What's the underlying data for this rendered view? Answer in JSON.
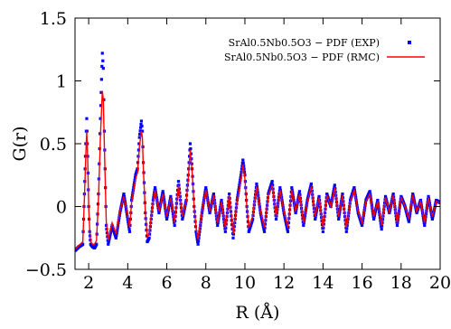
{
  "chart_data": {
    "type": "line",
    "title": "",
    "xlabel": "R (Å)",
    "ylabel": "G(r)",
    "xlim": [
      1.3,
      20
    ],
    "ylim": [
      -0.5,
      1.5
    ],
    "xticks": [
      2,
      4,
      6,
      8,
      10,
      12,
      14,
      16,
      18,
      20
    ],
    "yticks": [
      -0.5,
      0,
      0.5,
      1,
      1.5
    ],
    "xtick_labels": [
      "2",
      "4",
      "6",
      "8",
      "10",
      "12",
      "14",
      "16",
      "18",
      "20"
    ],
    "ytick_labels": [
      "−0.5",
      "0",
      "0.5",
      "1",
      "1.5"
    ],
    "grid": false,
    "legend_position": "top-right",
    "series": [
      {
        "name": "SrAl0.5Nb0.5O3 − PDF (EXP)",
        "style": "points",
        "color": "#0000ff",
        "x": [
          1.3,
          1.5,
          1.7,
          1.8,
          1.85,
          1.9,
          1.95,
          2.0,
          2.05,
          2.1,
          2.2,
          2.3,
          2.4,
          2.5,
          2.6,
          2.7,
          2.75,
          2.8,
          2.9,
          3.0,
          3.2,
          3.4,
          3.6,
          3.8,
          4.0,
          4.1,
          4.2,
          4.3,
          4.4,
          4.5,
          4.6,
          4.7,
          4.75,
          4.8,
          4.9,
          5.0,
          5.1,
          5.2,
          5.3,
          5.4,
          5.6,
          5.8,
          6.0,
          6.2,
          6.4,
          6.6,
          6.8,
          7.0,
          7.1,
          7.2,
          7.3,
          7.4,
          7.5,
          7.6,
          7.8,
          8.0,
          8.2,
          8.4,
          8.6,
          8.8,
          9.0,
          9.2,
          9.4,
          9.6,
          9.8,
          9.9,
          10.0,
          10.1,
          10.2,
          10.4,
          10.6,
          10.8,
          11.0,
          11.2,
          11.4,
          11.6,
          11.8,
          12.0,
          12.2,
          12.4,
          12.6,
          12.8,
          13.0,
          13.2,
          13.4,
          13.6,
          13.8,
          14.0,
          14.2,
          14.4,
          14.6,
          14.8,
          15.0,
          15.2,
          15.4,
          15.6,
          15.8,
          16.0,
          16.2,
          16.4,
          16.6,
          16.8,
          17.0,
          17.2,
          17.4,
          17.6,
          17.8,
          18.0,
          18.2,
          18.4,
          18.6,
          18.8,
          19.0,
          19.2,
          19.4,
          19.6,
          19.8,
          20.0
        ],
        "y": [
          -0.35,
          -0.32,
          -0.3,
          0.2,
          0.5,
          0.7,
          0.4,
          0.0,
          -0.2,
          -0.3,
          -0.32,
          -0.33,
          -0.3,
          0.1,
          0.7,
          1.22,
          1.1,
          0.6,
          -0.15,
          -0.3,
          -0.15,
          -0.25,
          -0.05,
          0.1,
          -0.1,
          -0.2,
          0.05,
          0.15,
          0.25,
          0.3,
          0.55,
          0.68,
          0.6,
          0.35,
          -0.05,
          -0.28,
          -0.25,
          -0.1,
          0.05,
          0.15,
          -0.05,
          0.12,
          -0.1,
          0.08,
          -0.15,
          0.2,
          -0.1,
          0.05,
          0.25,
          0.5,
          0.3,
          0.0,
          -0.2,
          -0.3,
          -0.05,
          0.15,
          -0.05,
          0.1,
          -0.15,
          0.05,
          -0.2,
          0.1,
          -0.25,
          0.05,
          0.25,
          0.37,
          0.25,
          0.0,
          -0.2,
          -0.1,
          0.18,
          -0.05,
          -0.2,
          0.1,
          0.2,
          -0.1,
          0.15,
          -0.05,
          -0.2,
          0.15,
          -0.05,
          0.12,
          -0.15,
          0.05,
          0.18,
          -0.1,
          0.08,
          -0.2,
          0.1,
          0.0,
          0.17,
          -0.1,
          0.1,
          -0.2,
          0.05,
          0.15,
          -0.05,
          -0.15,
          0.05,
          0.12,
          -0.1,
          0.05,
          -0.18,
          0.08,
          -0.05,
          0.1,
          -0.15,
          0.08,
          0.0,
          -0.12,
          0.1,
          -0.05,
          0.05,
          -0.15,
          0.08,
          -0.1,
          0.05,
          0.03
        ]
      },
      {
        "name": "SrAl0.5Nb0.5O3 − PDF (RMC)",
        "style": "line",
        "color": "#ff0000",
        "x": [
          1.3,
          1.5,
          1.7,
          1.8,
          1.85,
          1.9,
          1.95,
          2.0,
          2.05,
          2.1,
          2.2,
          2.3,
          2.4,
          2.5,
          2.6,
          2.7,
          2.75,
          2.8,
          2.9,
          3.0,
          3.2,
          3.4,
          3.6,
          3.8,
          4.0,
          4.1,
          4.2,
          4.3,
          4.4,
          4.5,
          4.6,
          4.7,
          4.75,
          4.8,
          4.9,
          5.0,
          5.1,
          5.2,
          5.3,
          5.4,
          5.6,
          5.8,
          6.0,
          6.2,
          6.4,
          6.6,
          6.8,
          7.0,
          7.1,
          7.2,
          7.3,
          7.4,
          7.5,
          7.6,
          7.8,
          8.0,
          8.2,
          8.4,
          8.6,
          8.8,
          9.0,
          9.2,
          9.4,
          9.6,
          9.8,
          9.9,
          10.0,
          10.1,
          10.2,
          10.4,
          10.6,
          10.8,
          11.0,
          11.2,
          11.4,
          11.6,
          11.8,
          12.0,
          12.2,
          12.4,
          12.6,
          12.8,
          13.0,
          13.2,
          13.4,
          13.6,
          13.8,
          14.0,
          14.2,
          14.4,
          14.6,
          14.8,
          15.0,
          15.2,
          15.4,
          15.6,
          15.8,
          16.0,
          16.2,
          16.4,
          16.6,
          16.8,
          17.0,
          17.2,
          17.4,
          17.6,
          17.8,
          18.0,
          18.2,
          18.4,
          18.6,
          18.8,
          19.0,
          19.2,
          19.4,
          19.6,
          19.8,
          20.0
        ],
        "y": [
          -0.34,
          -0.31,
          -0.28,
          0.15,
          0.4,
          0.6,
          0.38,
          0.0,
          -0.18,
          -0.28,
          -0.3,
          -0.3,
          -0.27,
          0.05,
          0.55,
          0.92,
          0.85,
          0.5,
          -0.12,
          -0.27,
          -0.13,
          -0.22,
          -0.04,
          0.08,
          -0.08,
          -0.17,
          0.04,
          0.13,
          0.22,
          0.27,
          0.48,
          0.6,
          0.55,
          0.3,
          -0.04,
          -0.24,
          -0.22,
          -0.08,
          0.04,
          0.13,
          -0.04,
          0.1,
          -0.08,
          0.07,
          -0.13,
          0.17,
          -0.08,
          0.04,
          0.22,
          0.45,
          0.27,
          0.0,
          -0.17,
          -0.26,
          -0.04,
          0.13,
          -0.04,
          0.09,
          -0.13,
          0.04,
          -0.17,
          0.09,
          -0.22,
          0.04,
          0.22,
          0.33,
          0.22,
          0.0,
          -0.17,
          -0.08,
          0.16,
          -0.04,
          -0.17,
          0.09,
          0.17,
          -0.08,
          0.13,
          -0.04,
          -0.17,
          0.13,
          -0.04,
          0.1,
          -0.13,
          0.04,
          0.16,
          -0.08,
          0.07,
          -0.17,
          0.09,
          0.0,
          0.15,
          -0.08,
          0.09,
          -0.17,
          0.04,
          0.13,
          -0.04,
          -0.13,
          0.04,
          0.1,
          -0.08,
          0.04,
          -0.15,
          0.07,
          -0.04,
          0.09,
          -0.13,
          0.07,
          0.0,
          -0.1,
          0.09,
          -0.04,
          0.04,
          -0.13,
          0.07,
          -0.08,
          0.04,
          0.03
        ]
      }
    ]
  }
}
